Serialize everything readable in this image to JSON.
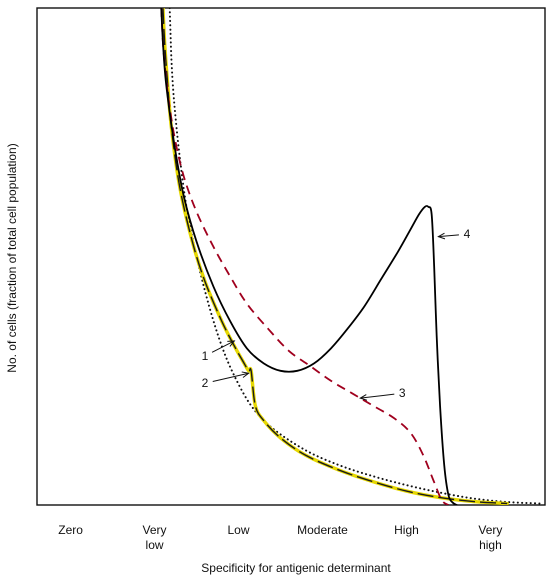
{
  "chart_data": {
    "type": "line",
    "title": "",
    "xlabel": "Specificity for antigenic determinant",
    "ylabel": "No. of cells (fraction of total cell population)",
    "x_ticks": [
      {
        "x": 0,
        "lines": [
          "Zero"
        ]
      },
      {
        "x": 1,
        "lines": [
          "Very",
          "low"
        ]
      },
      {
        "x": 2,
        "lines": [
          "Low"
        ]
      },
      {
        "x": 3,
        "lines": [
          "Moderate"
        ]
      },
      {
        "x": 4,
        "lines": [
          "High"
        ]
      },
      {
        "x": 5,
        "lines": [
          "Very",
          "high"
        ]
      }
    ],
    "xlim": [
      -0.4,
      5.65
    ],
    "ylim": [
      0,
      1
    ],
    "grid": false,
    "series": [
      {
        "name": "1",
        "style": "dotted",
        "color": "#111111",
        "x": [
          1.18,
          1.19,
          1.2,
          1.22,
          1.25,
          1.3,
          1.38,
          1.5,
          1.65,
          1.8,
          1.95,
          2.15,
          2.4,
          2.8,
          3.2,
          3.6,
          4.0,
          4.4,
          4.8,
          5.2,
          5.6
        ],
        "y": [
          1.0,
          0.95,
          0.9,
          0.84,
          0.78,
          0.7,
          0.6,
          0.5,
          0.4,
          0.32,
          0.26,
          0.2,
          0.155,
          0.11,
          0.08,
          0.058,
          0.04,
          0.025,
          0.013,
          0.006,
          0.003
        ]
      },
      {
        "name": "2",
        "style": "dash-long",
        "color": "#1a1a1a",
        "highlight": "#e6d800",
        "x": [
          1.1,
          1.12,
          1.15,
          1.2,
          1.3,
          1.45,
          1.6,
          1.8,
          1.95,
          2.05,
          2.12,
          2.15,
          2.2,
          2.3,
          2.5,
          2.8,
          3.2,
          3.6,
          4.0,
          4.4,
          4.8,
          5.2
        ],
        "y": [
          1.0,
          0.93,
          0.86,
          0.76,
          0.64,
          0.53,
          0.45,
          0.37,
          0.32,
          0.29,
          0.27,
          0.27,
          0.2,
          0.17,
          0.135,
          0.1,
          0.07,
          0.047,
          0.028,
          0.015,
          0.007,
          0.003
        ]
      },
      {
        "name": "3",
        "style": "dashed",
        "color": "#a0001e",
        "x": [
          1.08,
          1.1,
          1.13,
          1.18,
          1.25,
          1.35,
          1.5,
          1.7,
          1.9,
          2.1,
          2.35,
          2.6,
          2.85,
          3.1,
          3.35,
          3.6,
          3.85,
          4.05,
          4.2,
          4.32,
          4.42,
          4.5
        ],
        "y": [
          1.0,
          0.93,
          0.87,
          0.8,
          0.73,
          0.66,
          0.59,
          0.52,
          0.46,
          0.405,
          0.355,
          0.31,
          0.28,
          0.25,
          0.225,
          0.2,
          0.175,
          0.145,
          0.1,
          0.05,
          0.01,
          0.0
        ]
      },
      {
        "name": "4",
        "style": "solid",
        "color": "#000000",
        "x": [
          1.08,
          1.1,
          1.13,
          1.18,
          1.25,
          1.35,
          1.5,
          1.7,
          1.9,
          2.1,
          2.3,
          2.5,
          2.7,
          2.9,
          3.1,
          3.3,
          3.5,
          3.7,
          3.9,
          4.05,
          4.15,
          4.22,
          4.26,
          4.3,
          4.33,
          4.36,
          4.4,
          4.45,
          4.5,
          4.55,
          4.6
        ],
        "y": [
          1.0,
          0.93,
          0.86,
          0.79,
          0.71,
          0.62,
          0.53,
          0.44,
          0.37,
          0.315,
          0.285,
          0.27,
          0.27,
          0.285,
          0.315,
          0.355,
          0.4,
          0.455,
          0.51,
          0.555,
          0.585,
          0.6,
          0.6,
          0.585,
          0.48,
          0.34,
          0.2,
          0.08,
          0.02,
          0.005,
          0.0
        ]
      }
    ],
    "callouts": [
      {
        "label": "1",
        "series": "1",
        "text_at": [
          1.6,
          0.3
        ],
        "point_at": [
          1.95,
          0.33
        ]
      },
      {
        "label": "2",
        "series": "2",
        "text_at": [
          1.6,
          0.245
        ],
        "point_at": [
          2.12,
          0.265
        ]
      },
      {
        "label": "3",
        "series": "3",
        "text_at": [
          3.95,
          0.225
        ],
        "point_at": [
          3.45,
          0.215
        ]
      },
      {
        "label": "4",
        "series": "4",
        "text_at": [
          4.72,
          0.545
        ],
        "point_at": [
          4.38,
          0.54
        ]
      }
    ]
  }
}
